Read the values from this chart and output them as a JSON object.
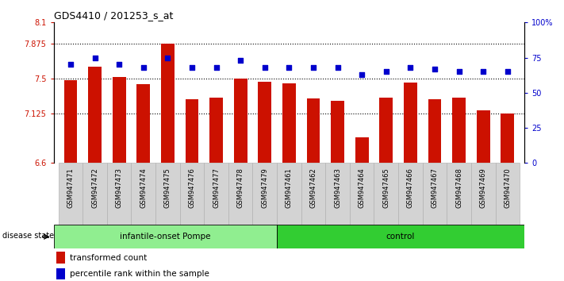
{
  "title": "GDS4410 / 201253_s_at",
  "samples": [
    "GSM947471",
    "GSM947472",
    "GSM947473",
    "GSM947474",
    "GSM947475",
    "GSM947476",
    "GSM947477",
    "GSM947478",
    "GSM947479",
    "GSM947461",
    "GSM947462",
    "GSM947463",
    "GSM947464",
    "GSM947465",
    "GSM947466",
    "GSM947467",
    "GSM947468",
    "GSM947469",
    "GSM947470"
  ],
  "bar_values": [
    7.48,
    7.63,
    7.52,
    7.44,
    7.875,
    7.28,
    7.3,
    7.5,
    7.47,
    7.45,
    7.29,
    7.26,
    6.87,
    7.3,
    7.46,
    7.28,
    7.3,
    7.16,
    7.13
  ],
  "dot_values": [
    70,
    75,
    70,
    68,
    75,
    68,
    68,
    73,
    68,
    68,
    68,
    68,
    63,
    65,
    68,
    67,
    65,
    65,
    65
  ],
  "group1_count": 9,
  "group2_count": 10,
  "group1_label": "infantile-onset Pompe",
  "group2_label": "control",
  "disease_state_label": "disease state",
  "ylim_left": [
    6.6,
    8.1
  ],
  "ylim_right": [
    0,
    100
  ],
  "yticks_left": [
    6.6,
    7.125,
    7.5,
    7.875,
    8.1
  ],
  "yticks_left_labels": [
    "6.6",
    "7.125",
    "7.5",
    "7.875",
    "8.1"
  ],
  "yticks_right": [
    0,
    25,
    50,
    75,
    100
  ],
  "yticks_right_labels": [
    "0",
    "25",
    "50",
    "75",
    "100%"
  ],
  "hlines": [
    7.125,
    7.5,
    7.875
  ],
  "bar_color": "#cc1100",
  "dot_color": "#0000cc",
  "group1_bg": "#90ee90",
  "group2_bg": "#32cd32",
  "sample_bg": "#d3d3d3",
  "legend_bar_label": "transformed count",
  "legend_dot_label": "percentile rank within the sample"
}
